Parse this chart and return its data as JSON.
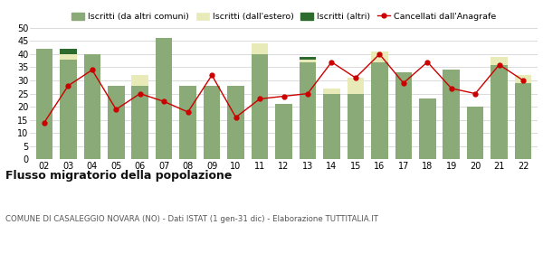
{
  "years": [
    "02",
    "03",
    "04",
    "05",
    "06",
    "07",
    "08",
    "09",
    "10",
    "11",
    "12",
    "13",
    "14",
    "15",
    "16",
    "17",
    "18",
    "19",
    "20",
    "21",
    "22"
  ],
  "iscritti_comuni": [
    42,
    38,
    40,
    28,
    28,
    46,
    28,
    28,
    28,
    40,
    21,
    37,
    25,
    25,
    37,
    33,
    23,
    34,
    20,
    36,
    29
  ],
  "iscritti_estero": [
    0,
    2,
    0,
    0,
    4,
    0,
    0,
    0,
    0,
    4,
    0,
    1,
    2,
    6,
    4,
    0,
    0,
    0,
    0,
    3,
    3
  ],
  "iscritti_altri": [
    0,
    2,
    0,
    0,
    0,
    0,
    0,
    0,
    0,
    0,
    0,
    1,
    0,
    0,
    0,
    0,
    0,
    0,
    0,
    0,
    0
  ],
  "cancellati": [
    14,
    28,
    34,
    19,
    25,
    22,
    18,
    32,
    16,
    23,
    24,
    25,
    37,
    31,
    40,
    29,
    37,
    27,
    25,
    36,
    30
  ],
  "color_comuni": "#8aaa77",
  "color_estero": "#e8ebb8",
  "color_altri": "#2d6a2d",
  "color_cancellati": "#cc0000",
  "ylim": [
    0,
    50
  ],
  "yticks": [
    0,
    5,
    10,
    15,
    20,
    25,
    30,
    35,
    40,
    45,
    50
  ],
  "title": "Flusso migratorio della popolazione",
  "subtitle": "COMUNE DI CASALEGGIO NOVARA (NO) - Dati ISTAT (1 gen-31 dic) - Elaborazione TUTTITALIA.IT",
  "legend_labels": [
    "Iscritti (da altri comuni)",
    "Iscritti (dall'estero)",
    "Iscritti (altri)",
    "Cancellati dall'Anagrafe"
  ],
  "background_color": "#ffffff"
}
